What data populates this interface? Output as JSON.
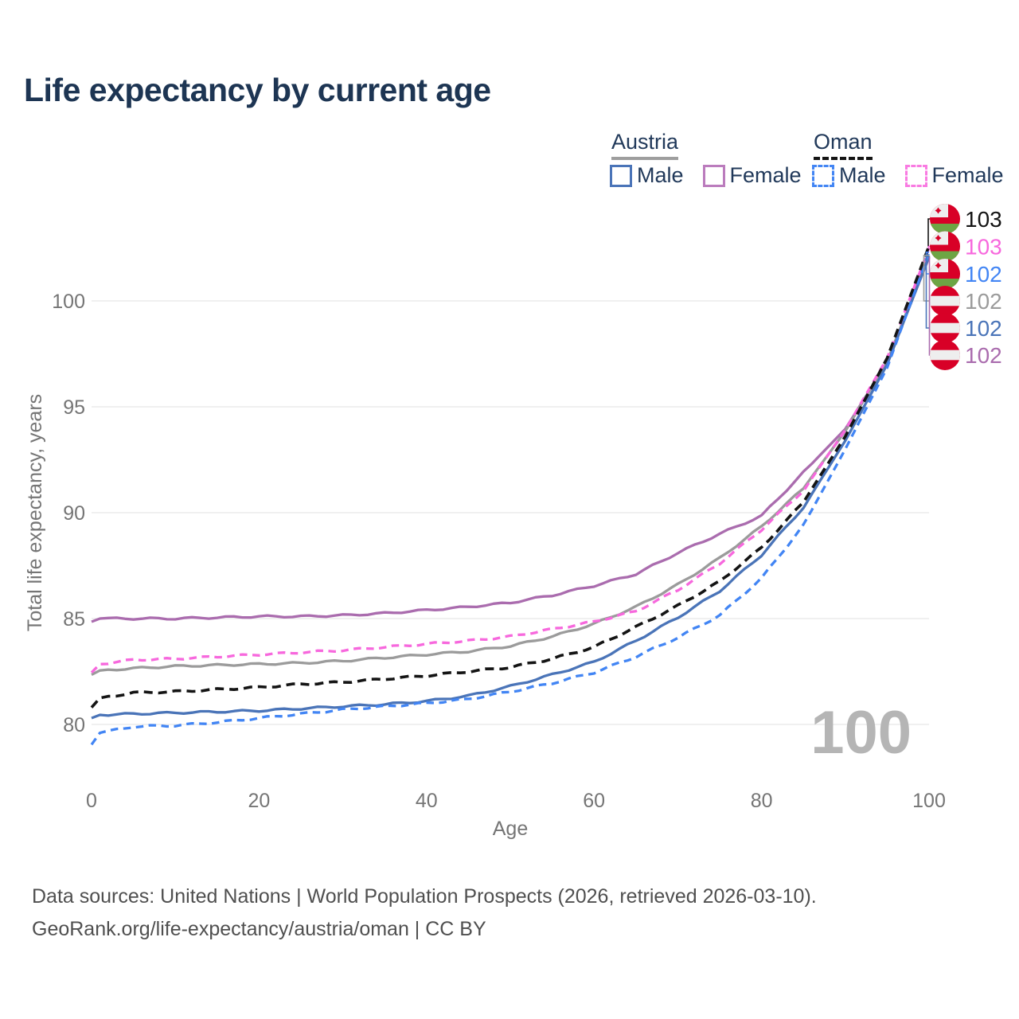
{
  "title": "Life expectancy by current age",
  "legend": {
    "groups": [
      {
        "label": "Austria",
        "underline_style": "solid",
        "underline_color": "#9e9e9e",
        "items": [
          {
            "label": "Male",
            "color": "#4a74b8",
            "dashed": false
          },
          {
            "label": "Female",
            "color": "#bb7cbd",
            "dashed": false
          }
        ]
      },
      {
        "label": "Oman",
        "underline_style": "dashed",
        "underline_color": "#141414",
        "items": [
          {
            "label": "Male",
            "color": "#4285f4",
            "dashed": true
          },
          {
            "label": "Female",
            "color": "#f97be2",
            "dashed": true
          }
        ]
      }
    ]
  },
  "chart_data": {
    "type": "line",
    "title": "Life expectancy by current age",
    "xlabel": "Age",
    "ylabel": "Total life expectancy, years",
    "xlim": [
      0,
      100
    ],
    "ylim": [
      78,
      103.5
    ],
    "x_ticks": [
      0,
      20,
      40,
      60,
      80,
      100
    ],
    "y_ticks": [
      80,
      85,
      90,
      95,
      100
    ],
    "grid": "horizontal",
    "watermark": "100",
    "x": [
      0,
      1,
      5,
      10,
      15,
      20,
      25,
      30,
      35,
      40,
      45,
      50,
      55,
      60,
      65,
      70,
      75,
      80,
      85,
      90,
      95,
      100
    ],
    "series": [
      {
        "name": "Oman total",
        "country": "Oman",
        "sex": "Both",
        "flag": "oman",
        "color": "#141414",
        "dash": "dashed",
        "end_label": "103",
        "values": [
          80.8,
          81.25,
          81.5,
          81.55,
          81.65,
          81.75,
          81.9,
          82.0,
          82.15,
          82.3,
          82.5,
          82.7,
          83.1,
          83.65,
          84.6,
          85.6,
          86.75,
          88.35,
          90.5,
          93.6,
          97.3,
          102.6
        ]
      },
      {
        "name": "Oman Female",
        "country": "Oman",
        "sex": "Female",
        "flag": "oman",
        "color": "#f768dd",
        "dash": "dashed",
        "end_label": "103",
        "values": [
          82.45,
          82.85,
          83.05,
          83.1,
          83.2,
          83.3,
          83.4,
          83.5,
          83.65,
          83.8,
          83.95,
          84.15,
          84.5,
          84.85,
          85.35,
          86.35,
          87.6,
          89.2,
          91.05,
          93.9,
          97.3,
          102.5
        ]
      },
      {
        "name": "Oman Male",
        "country": "Oman",
        "sex": "Male",
        "flag": "oman",
        "color": "#4285f4",
        "dash": "dashed",
        "end_label": "102",
        "values": [
          79.05,
          79.6,
          79.9,
          79.95,
          80.1,
          80.3,
          80.5,
          80.7,
          80.85,
          81.0,
          81.2,
          81.55,
          81.95,
          82.45,
          83.2,
          84.1,
          85.15,
          86.9,
          89.4,
          93.0,
          96.85,
          102.3
        ]
      },
      {
        "name": "Austria total",
        "country": "Austria",
        "sex": "Both",
        "flag": "austria",
        "color": "#9b9b9b",
        "dash": "solid",
        "end_label": "102",
        "values": [
          82.35,
          82.55,
          82.65,
          82.75,
          82.8,
          82.85,
          82.9,
          83.0,
          83.15,
          83.3,
          83.45,
          83.7,
          84.15,
          84.75,
          85.55,
          86.6,
          87.85,
          89.35,
          91.15,
          93.85,
          97.15,
          102.15
        ]
      },
      {
        "name": "Austria Male",
        "country": "Austria",
        "sex": "Male",
        "flag": "austria",
        "color": "#4a74b8",
        "dash": "solid",
        "end_label": "102",
        "values": [
          80.3,
          80.45,
          80.5,
          80.55,
          80.6,
          80.65,
          80.75,
          80.85,
          80.95,
          81.1,
          81.35,
          81.8,
          82.35,
          82.95,
          83.95,
          85.05,
          86.3,
          88.0,
          90.25,
          93.4,
          97.0,
          102.1
        ]
      },
      {
        "name": "Austria Female",
        "country": "Austria",
        "sex": "Female",
        "flag": "austria",
        "color": "#aa6cae",
        "dash": "solid",
        "end_label": "102",
        "values": [
          84.85,
          85.0,
          85.0,
          85.0,
          85.05,
          85.1,
          85.1,
          85.15,
          85.25,
          85.4,
          85.55,
          85.75,
          86.1,
          86.55,
          87.1,
          88.1,
          89.0,
          89.85,
          91.9,
          93.95,
          97.1,
          102.05
        ]
      }
    ]
  },
  "footer": {
    "line1": "Data sources: United Nations | World Population Prospects (2026, retrieved 2026-03-10).",
    "line2": "GeoRank.org/life-expectancy/austria/oman | CC BY"
  },
  "colors": {
    "title": "#1d3553",
    "axis_text": "#757575",
    "gridline": "#e8e8e8",
    "watermark": "#b5b5b5",
    "flag_red": "#d80027",
    "flag_green": "#6da544",
    "flag_white": "#eeeeee"
  }
}
